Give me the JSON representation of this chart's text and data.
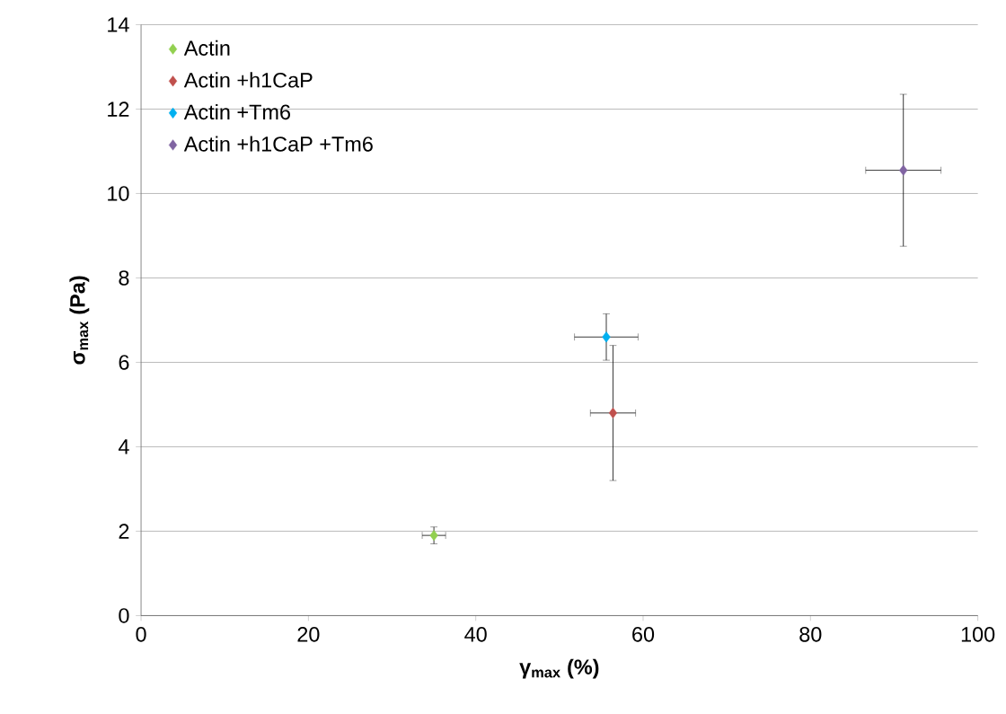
{
  "chart_data": {
    "type": "scatter",
    "xlabel": "γ$_{max}$ (%)",
    "ylabel": "σ$_{max}$ (Pa)",
    "series": [
      {
        "name": "Actin",
        "color": "#92d050",
        "x": [
          35
        ],
        "values": [
          1.9
        ],
        "errors": [
          0.2
        ],
        "xerrors": [
          1.4
        ]
      },
      {
        "name": "Actin +h1CaP",
        "color": "#c0504d",
        "x": [
          56.4
        ],
        "values": [
          4.8
        ],
        "errors": [
          1.6
        ],
        "xerrors": [
          2.7
        ]
      },
      {
        "name": "Actin +Tm6",
        "color": "#00b0f0",
        "x": [
          55.6
        ],
        "values": [
          6.6
        ],
        "errors": [
          0.55
        ],
        "xerrors": [
          3.8
        ]
      },
      {
        "name": "Actin +h1CaP +Tm6",
        "color": "#8064a2",
        "x": [
          91.1
        ],
        "values": [
          10.55
        ],
        "errors": [
          1.8
        ],
        "xerrors": [
          4.5
        ]
      }
    ],
    "xlim": [
      0,
      100
    ],
    "ylim": [
      0,
      14
    ],
    "xticks": [
      0,
      20,
      40,
      60,
      80,
      100
    ],
    "yticks": [
      0,
      2,
      4,
      6,
      8,
      10,
      12,
      14
    ],
    "grid": "y",
    "legend": "top left",
    "marker": "diamond"
  }
}
